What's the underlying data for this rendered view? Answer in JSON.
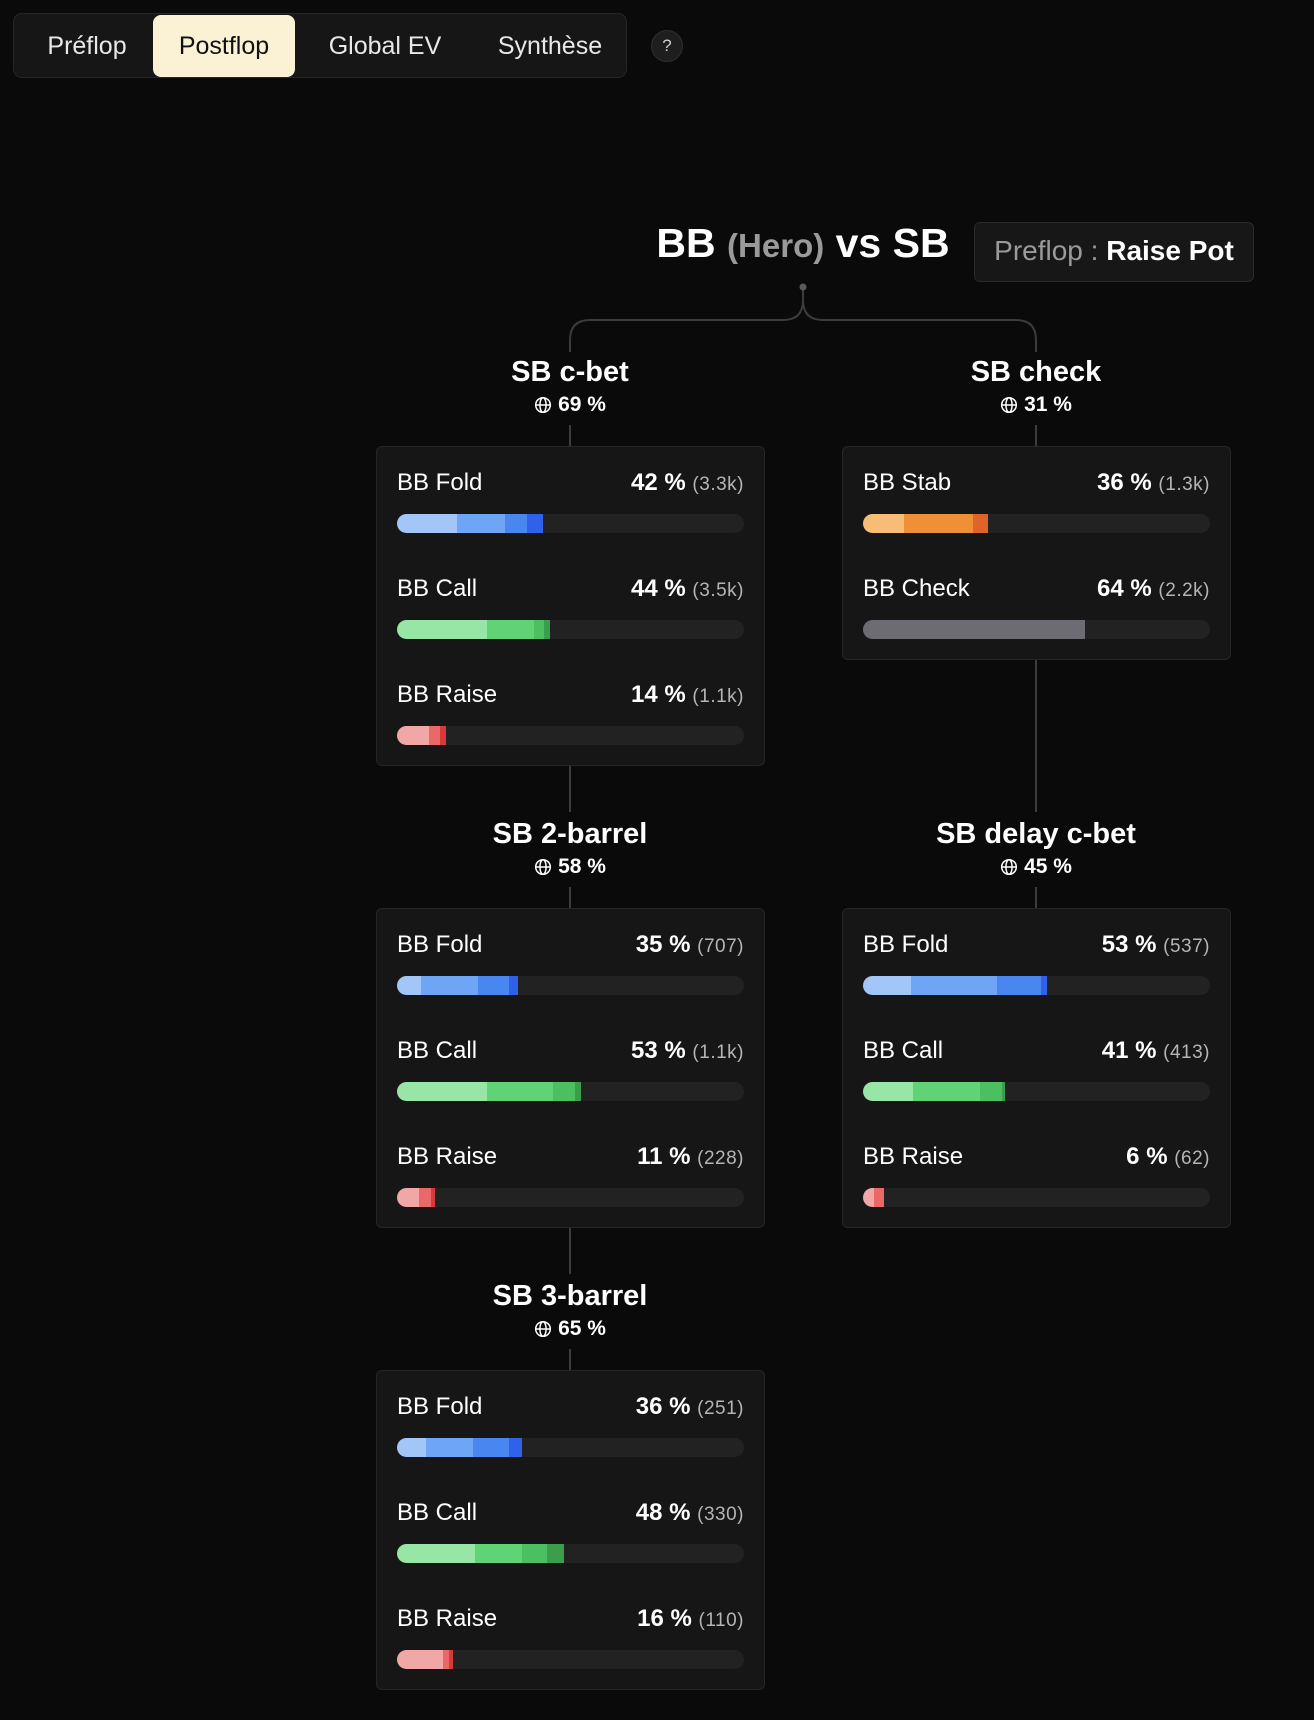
{
  "tabs": [
    {
      "label": "Préflop",
      "active": false
    },
    {
      "label": "Postflop",
      "active": true
    },
    {
      "label": "Global EV",
      "active": false
    },
    {
      "label": "Synthèse",
      "active": false
    }
  ],
  "help_label": "?",
  "header": {
    "player": "BB",
    "hero": "(Hero)",
    "vs": "vs SB",
    "preflop_label": "Preflop :",
    "preflop_value": "Raise Pot"
  },
  "nodes": [
    {
      "title": "SB c-bet",
      "freq": "69 %",
      "icon": "globe-icon",
      "rows": [
        {
          "label": "BB Fold",
          "pct": "42 %",
          "count": "(3.3k)",
          "fill": 42,
          "segments": [
            {
              "share": 41,
              "color": "#a2c6f8"
            },
            {
              "share": 33,
              "color": "#6ea6f5"
            },
            {
              "share": 15,
              "color": "#4a86f0"
            },
            {
              "share": 11,
              "color": "#2f62e8"
            }
          ]
        },
        {
          "label": "BB Call",
          "pct": "44 %",
          "count": "(3.5k)",
          "fill": 44,
          "segments": [
            {
              "share": 59,
              "color": "#98e6a6"
            },
            {
              "share": 31,
              "color": "#5fd376"
            },
            {
              "share": 6,
              "color": "#4cbf60"
            },
            {
              "share": 4,
              "color": "#3a9e4a"
            }
          ]
        },
        {
          "label": "BB Raise",
          "pct": "14 %",
          "count": "(1.1k)",
          "fill": 14,
          "segments": [
            {
              "share": 65,
              "color": "#f2a7a7"
            },
            {
              "share": 24,
              "color": "#ea6868"
            },
            {
              "share": 11,
              "color": "#d83a3a"
            }
          ]
        }
      ]
    },
    {
      "title": "SB check",
      "freq": "31 %",
      "icon": "globe-icon",
      "rows": [
        {
          "label": "BB Stab",
          "pct": "36 %",
          "count": "(1.3k)",
          "fill": 36,
          "segments": [
            {
              "share": 33,
              "color": "#f7bd76"
            },
            {
              "share": 55,
              "color": "#ef8f36"
            },
            {
              "share": 12,
              "color": "#e0642a"
            }
          ]
        },
        {
          "label": "BB Check",
          "pct": "64 %",
          "count": "(2.2k)",
          "fill": 64,
          "segments": [
            {
              "share": 100,
              "color": "#6c6c72"
            }
          ]
        }
      ]
    },
    {
      "title": "SB 2-barrel",
      "freq": "58 %",
      "icon": "globe-icon",
      "rows": [
        {
          "label": "BB Fold",
          "pct": "35 %",
          "count": "(707)",
          "fill": 35,
          "segments": [
            {
              "share": 20,
              "color": "#a2c6f8"
            },
            {
              "share": 47,
              "color": "#6ea6f5"
            },
            {
              "share": 25,
              "color": "#4a86f0"
            },
            {
              "share": 8,
              "color": "#2f62e8"
            }
          ]
        },
        {
          "label": "BB Call",
          "pct": "53 %",
          "count": "(1.1k)",
          "fill": 53,
          "segments": [
            {
              "share": 49,
              "color": "#98e6a6"
            },
            {
              "share": 36,
              "color": "#5fd376"
            },
            {
              "share": 12,
              "color": "#4cbf60"
            },
            {
              "share": 3,
              "color": "#3a9e4a"
            }
          ]
        },
        {
          "label": "BB Raise",
          "pct": "11 %",
          "count": "(228)",
          "fill": 11,
          "segments": [
            {
              "share": 57,
              "color": "#f2a7a7"
            },
            {
              "share": 31,
              "color": "#ea6868"
            },
            {
              "share": 12,
              "color": "#d83a3a"
            }
          ]
        }
      ]
    },
    {
      "title": "SB delay c-bet",
      "freq": "45 %",
      "icon": "globe-icon",
      "rows": [
        {
          "label": "BB Fold",
          "pct": "53 %",
          "count": "(537)",
          "fill": 53,
          "segments": [
            {
              "share": 26,
              "color": "#a2c6f8"
            },
            {
              "share": 47,
              "color": "#6ea6f5"
            },
            {
              "share": 24,
              "color": "#4a86f0"
            },
            {
              "share": 3,
              "color": "#2f62e8"
            }
          ]
        },
        {
          "label": "BB Call",
          "pct": "41 %",
          "count": "(413)",
          "fill": 41,
          "segments": [
            {
              "share": 35,
              "color": "#98e6a6"
            },
            {
              "share": 47,
              "color": "#5fd376"
            },
            {
              "share": 16,
              "color": "#4cbf60"
            },
            {
              "share": 2,
              "color": "#3a9e4a"
            }
          ]
        },
        {
          "label": "BB Raise",
          "pct": "6 %",
          "count": "(62)",
          "fill": 6,
          "segments": [
            {
              "share": 55,
              "color": "#f2a7a7"
            },
            {
              "share": 45,
              "color": "#ea6868"
            }
          ]
        }
      ]
    },
    {
      "title": "SB 3-barrel",
      "freq": "65 %",
      "icon": "globe-icon",
      "rows": [
        {
          "label": "BB Fold",
          "pct": "36 %",
          "count": "(251)",
          "fill": 36,
          "segments": [
            {
              "share": 23,
              "color": "#a2c6f8"
            },
            {
              "share": 38,
              "color": "#6ea6f5"
            },
            {
              "share": 29,
              "color": "#4a86f0"
            },
            {
              "share": 10,
              "color": "#2f62e8"
            }
          ]
        },
        {
          "label": "BB Call",
          "pct": "48 %",
          "count": "(330)",
          "fill": 48,
          "segments": [
            {
              "share": 47,
              "color": "#98e6a6"
            },
            {
              "share": 28,
              "color": "#5fd376"
            },
            {
              "share": 15,
              "color": "#4cbf60"
            },
            {
              "share": 10,
              "color": "#3a9e4a"
            }
          ]
        },
        {
          "label": "BB Raise",
          "pct": "16 %",
          "count": "(110)",
          "fill": 16,
          "segments": [
            {
              "share": 82,
              "color": "#f2a7a7"
            },
            {
              "share": 12,
              "color": "#ea6868"
            },
            {
              "share": 6,
              "color": "#d83a3a"
            }
          ]
        }
      ]
    }
  ]
}
